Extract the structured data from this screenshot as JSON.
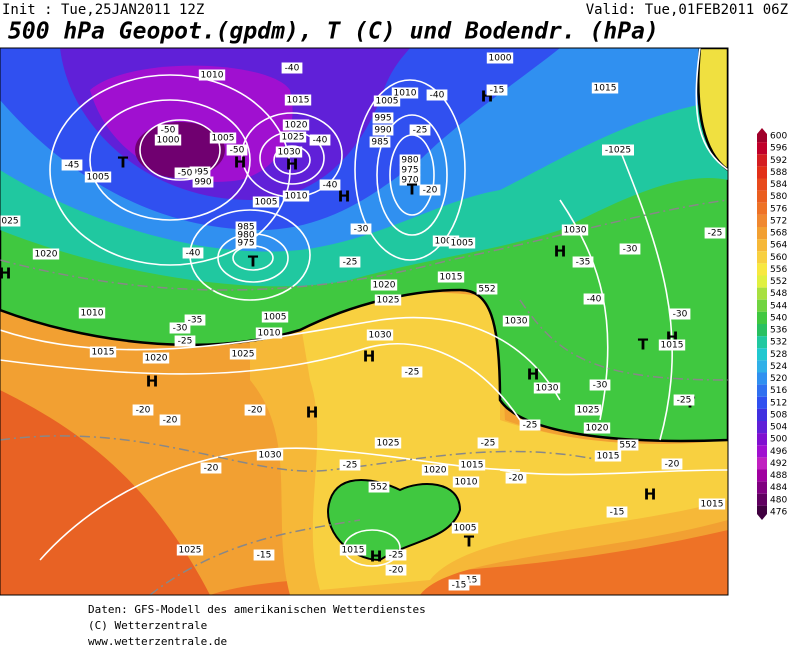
{
  "header": {
    "init": "Init : Tue,25JAN2011 12Z",
    "valid": "Valid: Tue,01FEB2011 06Z",
    "title": "500 hPa Geopot.(gpdm), T (C) und Bodendr. (hPa)"
  },
  "colorbar": {
    "ticks": [
      "600",
      "596",
      "592",
      "588",
      "584",
      "580",
      "576",
      "572",
      "568",
      "564",
      "560",
      "556",
      "552",
      "548",
      "544",
      "540",
      "536",
      "532",
      "528",
      "524",
      "520",
      "516",
      "512",
      "508",
      "504",
      "500",
      "496",
      "492",
      "488",
      "484",
      "480",
      "476"
    ],
    "colors": [
      "#a0002a",
      "#c0002a",
      "#d41e22",
      "#e23018",
      "#e84a1c",
      "#ea5e20",
      "#ee7226",
      "#f08830",
      "#f2a032",
      "#f6b838",
      "#f8d040",
      "#f8e840",
      "#e0f040",
      "#a8e040",
      "#70d440",
      "#40c840",
      "#28c060",
      "#20c8a0",
      "#20c8d0",
      "#30b0e8",
      "#3090f0",
      "#3070f0",
      "#3050f0",
      "#4030e0",
      "#6020d8",
      "#8010d0",
      "#a010d0",
      "#c020c0",
      "#a000a0",
      "#800080",
      "#600060",
      "#400040"
    ]
  },
  "map": {
    "labels": [
      "1010",
      "-40",
      "1000",
      "1015",
      "1010",
      "-40",
      "H",
      "-15",
      "1015",
      "-50",
      "1005",
      "1000",
      "-50",
      "T",
      "H",
      "1020",
      "1025",
      "1030",
      "H",
      "1005",
      "995",
      "990",
      "985",
      "-25",
      "-40",
      "-45",
      "1005",
      "995",
      "990",
      "-50",
      "980",
      "975",
      "970",
      "T",
      "-20",
      "H",
      "-40",
      "1005",
      "1010",
      "985",
      "980",
      "975",
      "T",
      "-30",
      "-25",
      "1020",
      "-40",
      "1000",
      "1005",
      "1015",
      "1020",
      "1025",
      "H",
      "-35",
      "-30",
      "1030",
      "-1025",
      "-40",
      "1010",
      "-35",
      "-30",
      "-25",
      "1005",
      "1010",
      "1030",
      "1030",
      "H",
      "1015",
      "1020",
      "1025",
      "H",
      "-20",
      "-20",
      "H",
      "-20",
      "-25",
      "H",
      "1030",
      "-30",
      "1025",
      "-25",
      "1020",
      "T",
      "H",
      "1015",
      "-30",
      "-25",
      "T",
      "-25",
      "1030",
      "1025",
      "-25",
      "1020",
      "-25",
      "1015",
      "1010",
      "-20",
      "-20",
      "1015",
      "-20",
      "H",
      "1015",
      "-15",
      "1025",
      "-15",
      "1015",
      "H",
      "-25",
      "-20",
      "1005",
      "T",
      "-15",
      "-15",
      "025",
      "H",
      "552",
      "552",
      "552"
    ]
  },
  "footer": {
    "lines": [
      "Daten: GFS-Modell des amerikanischen Wetterdienstes",
      "(C) Wetterzentrale",
      "www.wetterzentrale.de"
    ]
  }
}
